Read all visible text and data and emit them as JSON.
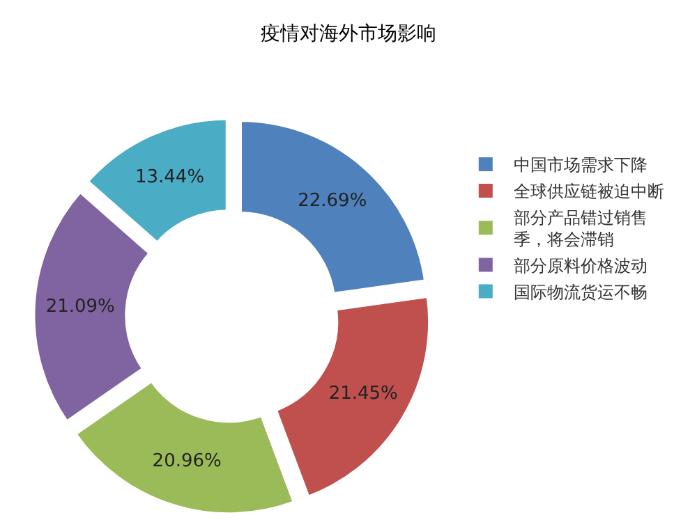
{
  "chart_data": {
    "type": "donut",
    "title": "疫情对海外市场影响",
    "categories": [
      "中国市场需求下降",
      "全球供应链被迫中断",
      "部分产品错过销售季，将会滞销",
      "部分原料价格波动",
      "国际物流货运不畅"
    ],
    "values": [
      22.69,
      21.45,
      20.96,
      21.09,
      13.44
    ],
    "colors": [
      "#4f81bd",
      "#c0504d",
      "#9bbb59",
      "#8064a2",
      "#4bacc6"
    ],
    "value_labels": [
      "22.69%",
      "21.45%",
      "20.96%",
      "21.09%",
      "13.44%"
    ],
    "legend": "right"
  }
}
